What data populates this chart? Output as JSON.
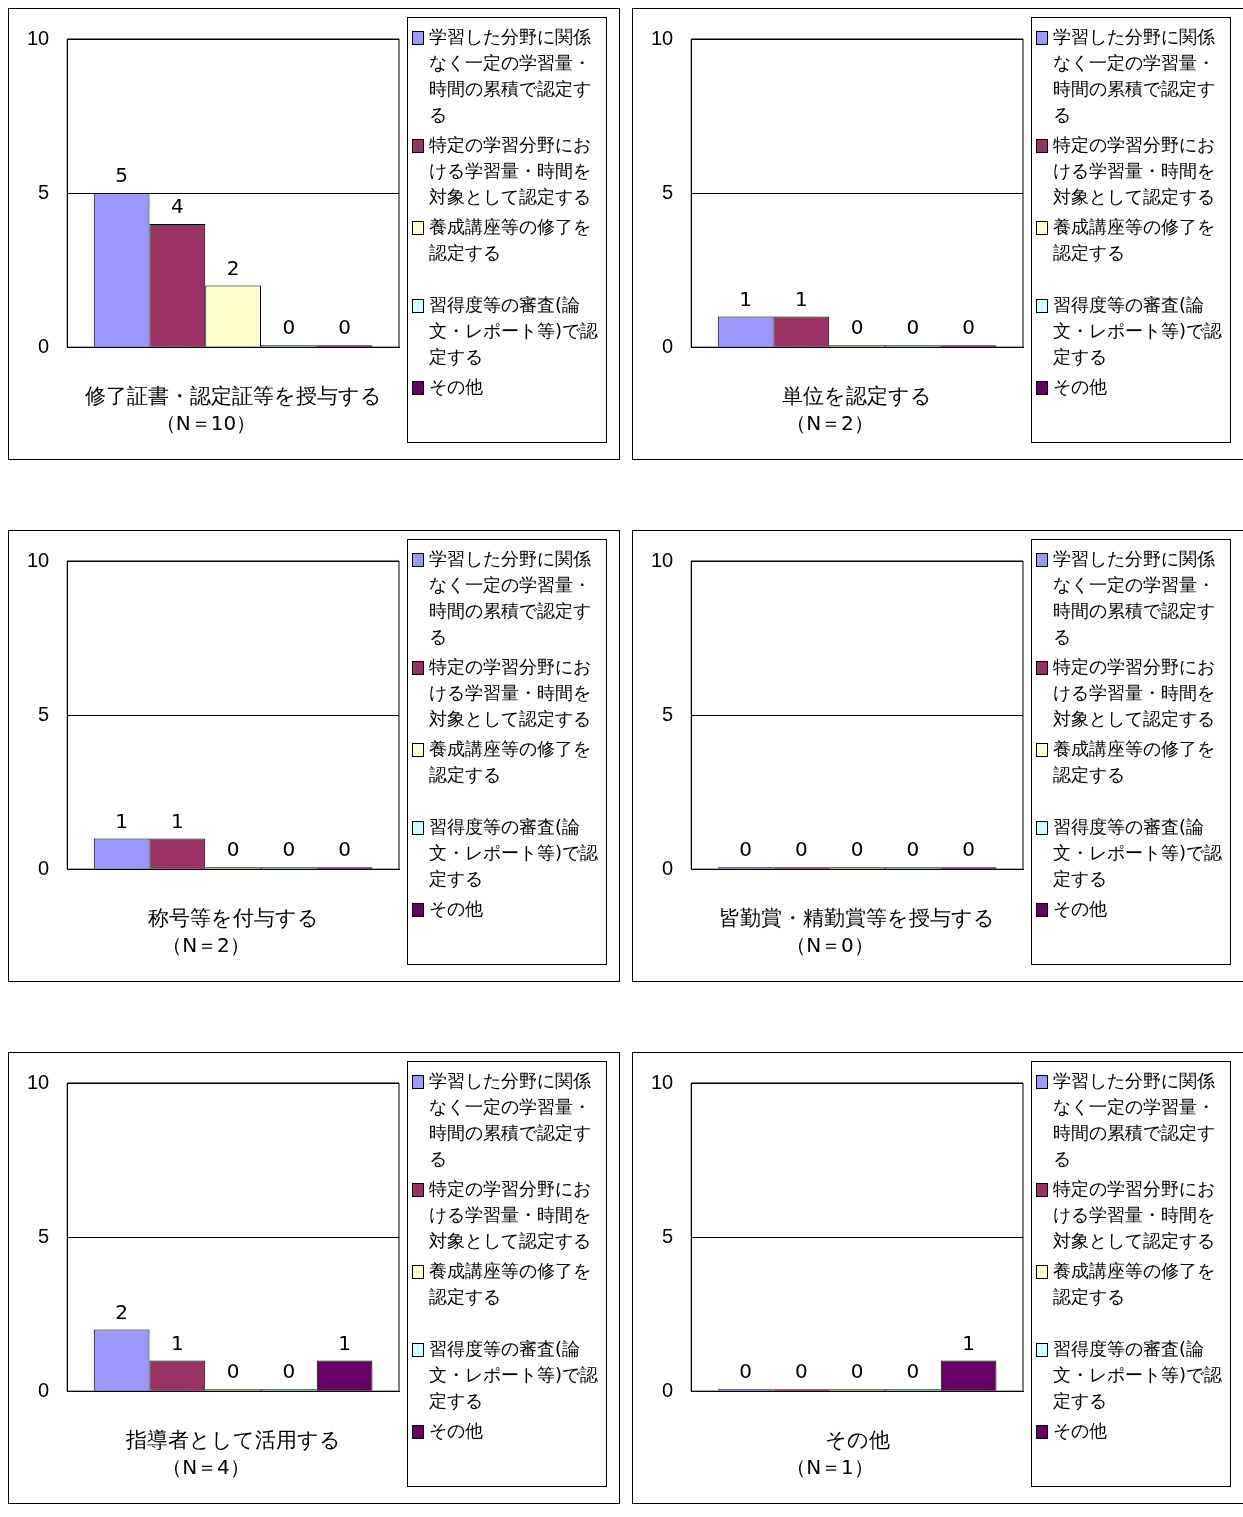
{
  "chart_data": [
    {
      "type": "bar",
      "xlabel": "修了証書・認定証等を授与する",
      "annotations": [
        "（N＝10）"
      ],
      "categories": [
        null
      ],
      "ylim": [
        0,
        10
      ],
      "yticks": [
        0,
        5,
        10
      ],
      "grid": "y",
      "legend": "right",
      "data_labels": true,
      "series": [
        {
          "name": "学習した分野に関係なく一定の学習量・時間の累積で認定する",
          "color": "#9999ff",
          "values": [
            5
          ]
        },
        {
          "name": "特定の学習分野における学習量・時間を対象として認定する",
          "color": "#993366",
          "values": [
            4
          ]
        },
        {
          "name": "養成講座等の修了を認定する",
          "color": "#ffffcc",
          "values": [
            2
          ]
        },
        {
          "name": "習得度等の審査(論文・レポート等)で認定する",
          "color": "#ccffff",
          "values": [
            0
          ]
        },
        {
          "name": "その他",
          "color": "#660066",
          "values": [
            0
          ]
        }
      ]
    },
    {
      "type": "bar",
      "xlabel": "単位を認定する",
      "annotations": [
        "（N＝2）"
      ],
      "categories": [
        null
      ],
      "ylim": [
        0,
        10
      ],
      "yticks": [
        0,
        5,
        10
      ],
      "grid": "y",
      "legend": "right",
      "data_labels": true,
      "series": [
        {
          "name": "学習した分野に関係なく一定の学習量・時間の累積で認定する",
          "color": "#9999ff",
          "values": [
            1
          ]
        },
        {
          "name": "特定の学習分野における学習量・時間を対象として認定する",
          "color": "#993366",
          "values": [
            1
          ]
        },
        {
          "name": "養成講座等の修了を認定する",
          "color": "#ffffcc",
          "values": [
            0
          ]
        },
        {
          "name": "習得度等の審査(論文・レポート等)で認定する",
          "color": "#ccffff",
          "values": [
            0
          ]
        },
        {
          "name": "その他",
          "color": "#660066",
          "values": [
            0
          ]
        }
      ]
    },
    {
      "type": "bar",
      "xlabel": "称号等を付与する",
      "annotations": [
        "（N＝2）"
      ],
      "categories": [
        null
      ],
      "ylim": [
        0,
        10
      ],
      "yticks": [
        0,
        5,
        10
      ],
      "grid": "y",
      "legend": "right",
      "data_labels": true,
      "series": [
        {
          "name": "学習した分野に関係なく一定の学習量・時間の累積で認定する",
          "color": "#9999ff",
          "values": [
            1
          ]
        },
        {
          "name": "特定の学習分野における学習量・時間を対象として認定する",
          "color": "#993366",
          "values": [
            1
          ]
        },
        {
          "name": "養成講座等の修了を認定する",
          "color": "#ffffcc",
          "values": [
            0
          ]
        },
        {
          "name": "習得度等の審査(論文・レポート等)で認定する",
          "color": "#ccffff",
          "values": [
            0
          ]
        },
        {
          "name": "その他",
          "color": "#660066",
          "values": [
            0
          ]
        }
      ]
    },
    {
      "type": "bar",
      "xlabel": "皆勤賞・精勤賞等を授与する",
      "annotations": [
        "（N＝0）"
      ],
      "categories": [
        null
      ],
      "ylim": [
        0,
        10
      ],
      "yticks": [
        0,
        5,
        10
      ],
      "grid": "y",
      "legend": "right",
      "data_labels": true,
      "series": [
        {
          "name": "学習した分野に関係なく一定の学習量・時間の累積で認定する",
          "color": "#9999ff",
          "values": [
            0
          ]
        },
        {
          "name": "特定の学習分野における学習量・時間を対象として認定する",
          "color": "#993366",
          "values": [
            0
          ]
        },
        {
          "name": "養成講座等の修了を認定する",
          "color": "#ffffcc",
          "values": [
            0
          ]
        },
        {
          "name": "習得度等の審査(論文・レポート等)で認定する",
          "color": "#ccffff",
          "values": [
            0
          ]
        },
        {
          "name": "その他",
          "color": "#660066",
          "values": [
            0
          ]
        }
      ]
    },
    {
      "type": "bar",
      "xlabel": "指導者として活用する",
      "annotations": [
        "（N＝4）"
      ],
      "categories": [
        null
      ],
      "ylim": [
        0,
        10
      ],
      "yticks": [
        0,
        5,
        10
      ],
      "grid": "y",
      "legend": "right",
      "data_labels": true,
      "series": [
        {
          "name": "学習した分野に関係なく一定の学習量・時間の累積で認定する",
          "color": "#9999ff",
          "values": [
            2
          ]
        },
        {
          "name": "特定の学習分野における学習量・時間を対象として認定する",
          "color": "#993366",
          "values": [
            1
          ]
        },
        {
          "name": "養成講座等の修了を認定する",
          "color": "#ffffcc",
          "values": [
            0
          ]
        },
        {
          "name": "習得度等の審査(論文・レポート等)で認定する",
          "color": "#ccffff",
          "values": [
            0
          ]
        },
        {
          "name": "その他",
          "color": "#660066",
          "values": [
            1
          ]
        }
      ]
    },
    {
      "type": "bar",
      "xlabel": "その他",
      "annotations": [
        "（N＝1）"
      ],
      "categories": [
        null
      ],
      "ylim": [
        0,
        10
      ],
      "yticks": [
        0,
        5,
        10
      ],
      "grid": "y",
      "legend": "right",
      "data_labels": true,
      "series": [
        {
          "name": "学習した分野に関係なく一定の学習量・時間の累積で認定する",
          "color": "#9999ff",
          "values": [
            0
          ]
        },
        {
          "name": "特定の学習分野における学習量・時間を対象として認定する",
          "color": "#993366",
          "values": [
            0
          ]
        },
        {
          "name": "養成講座等の修了を認定する",
          "color": "#ffffcc",
          "values": [
            0
          ]
        },
        {
          "name": "習得度等の審査(論文・レポート等)で認定する",
          "color": "#ccffff",
          "values": [
            0
          ]
        },
        {
          "name": "その他",
          "color": "#660066",
          "values": [
            1
          ]
        }
      ]
    }
  ]
}
